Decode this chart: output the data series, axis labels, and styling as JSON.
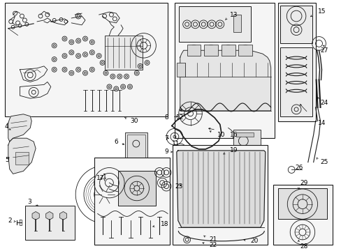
{
  "bg_color": "#ffffff",
  "line_color": "#1a1a1a",
  "text_color": "#000000",
  "fig_width": 4.89,
  "fig_height": 3.6,
  "dpi": 100,
  "box_face": "#f5f5f5",
  "box_face2": "#ebebeb"
}
